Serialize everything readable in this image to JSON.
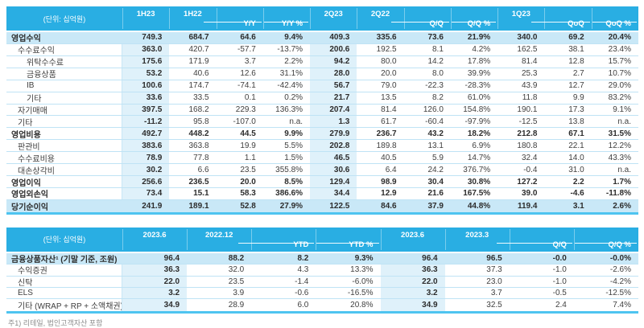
{
  "colors": {
    "header_bg": "#29AEE3",
    "row_highlight": "#C9E8F7",
    "column_highlight": "#DFF1FA",
    "row_border": "#BFE3F5",
    "table_bottom_border": "#4EC4F0",
    "text": "#404040",
    "footnote_text": "#8C8C8C"
  },
  "footnote": "주1) 리테일, 법인고객자산 포함",
  "tables": [
    {
      "id": "income-statement",
      "unit_label": "(단위: 십억원)",
      "columns": [
        {
          "label": "1H23",
          "kind": "period",
          "highlight": true
        },
        {
          "label": "1H22",
          "kind": "period"
        },
        {
          "label": "Y/Y",
          "kind": "delta",
          "line_start": true
        },
        {
          "label": "Y/Y %",
          "kind": "delta"
        },
        {
          "label": "2Q23",
          "kind": "period",
          "highlight": true
        },
        {
          "label": "2Q22",
          "kind": "period"
        },
        {
          "label": "Q/Q",
          "kind": "delta",
          "line_start": true
        },
        {
          "label": "Q/Q %",
          "kind": "delta"
        },
        {
          "label": "1Q23",
          "kind": "period"
        },
        {
          "label": "QoQ",
          "kind": "delta",
          "line_start": true
        },
        {
          "label": "QoQ %",
          "kind": "delta"
        }
      ],
      "rows": [
        {
          "label": "영업수익",
          "indent": 0,
          "bold": true,
          "highlight": true,
          "values": [
            "749.3",
            "684.7",
            "64.6",
            "9.4%",
            "409.3",
            "335.6",
            "73.6",
            "21.9%",
            "340.0",
            "69.2",
            "20.4%"
          ]
        },
        {
          "label": "수수료수익",
          "indent": 1,
          "values": [
            "363.0",
            "420.7",
            "-57.7",
            "-13.7%",
            "200.6",
            "192.5",
            "8.1",
            "4.2%",
            "162.5",
            "38.1",
            "23.4%"
          ]
        },
        {
          "label": "위탁수수료",
          "indent": 2,
          "values": [
            "175.6",
            "171.9",
            "3.7",
            "2.2%",
            "94.2",
            "80.0",
            "14.2",
            "17.8%",
            "81.4",
            "12.8",
            "15.7%"
          ]
        },
        {
          "label": "금융상품",
          "indent": 2,
          "values": [
            "53.2",
            "40.6",
            "12.6",
            "31.1%",
            "28.0",
            "20.0",
            "8.0",
            "39.9%",
            "25.3",
            "2.7",
            "10.7%"
          ]
        },
        {
          "label": "IB",
          "indent": 2,
          "values": [
            "100.6",
            "174.7",
            "-74.1",
            "-42.4%",
            "56.7",
            "79.0",
            "-22.3",
            "-28.3%",
            "43.9",
            "12.7",
            "29.0%"
          ]
        },
        {
          "label": "기타",
          "indent": 2,
          "values": [
            "33.6",
            "33.5",
            "0.1",
            "0.2%",
            "21.7",
            "13.5",
            "8.2",
            "61.0%",
            "11.8",
            "9.9",
            "83.2%"
          ]
        },
        {
          "label": "자기매매",
          "indent": 1,
          "values": [
            "397.5",
            "168.2",
            "229.3",
            "136.3%",
            "207.4",
            "81.4",
            "126.0",
            "154.8%",
            "190.1",
            "17.3",
            "9.1%"
          ]
        },
        {
          "label": "기타",
          "indent": 1,
          "values": [
            "-11.2",
            "95.8",
            "-107.0",
            "n.a.",
            "1.3",
            "61.7",
            "-60.4",
            "-97.9%",
            "-12.5",
            "13.8",
            "n.a."
          ]
        },
        {
          "label": "영업비용",
          "indent": 0,
          "bold": true,
          "values": [
            "492.7",
            "448.2",
            "44.5",
            "9.9%",
            "279.9",
            "236.7",
            "43.2",
            "18.2%",
            "212.8",
            "67.1",
            "31.5%"
          ]
        },
        {
          "label": "판관비",
          "indent": 1,
          "values": [
            "383.6",
            "363.8",
            "19.9",
            "5.5%",
            "202.8",
            "189.8",
            "13.1",
            "6.9%",
            "180.8",
            "22.1",
            "12.2%"
          ]
        },
        {
          "label": "수수료비용",
          "indent": 1,
          "values": [
            "78.9",
            "77.8",
            "1.1",
            "1.5%",
            "46.5",
            "40.5",
            "5.9",
            "14.7%",
            "32.4",
            "14.0",
            "43.3%"
          ]
        },
        {
          "label": "대손상각비",
          "indent": 1,
          "values": [
            "30.2",
            "6.6",
            "23.5",
            "355.8%",
            "30.6",
            "6.4",
            "24.2",
            "376.7%",
            "-0.4",
            "31.0",
            "n.a."
          ]
        },
        {
          "label": "영업이익",
          "indent": 0,
          "bold": true,
          "values": [
            "256.6",
            "236.5",
            "20.0",
            "8.5%",
            "129.4",
            "98.9",
            "30.4",
            "30.8%",
            "127.2",
            "2.2",
            "1.7%"
          ]
        },
        {
          "label": "영업외손익",
          "indent": 0,
          "bold": true,
          "values": [
            "73.4",
            "15.1",
            "58.3",
            "386.6%",
            "34.4",
            "12.9",
            "21.6",
            "167.5%",
            "39.0",
            "-4.6",
            "-11.8%"
          ]
        },
        {
          "label": "당기순이익",
          "indent": 0,
          "bold": true,
          "highlight": true,
          "values": [
            "241.9",
            "189.1",
            "52.8",
            "27.9%",
            "122.5",
            "84.6",
            "37.9",
            "44.8%",
            "119.4",
            "3.1",
            "2.6%"
          ]
        }
      ]
    },
    {
      "id": "financial-products",
      "unit_label": "(단위: 십억원)",
      "columns": [
        {
          "label": "2023.6",
          "kind": "period",
          "highlight": true
        },
        {
          "label": "2022.12",
          "kind": "period"
        },
        {
          "label": "YTD",
          "kind": "delta",
          "line_start": true
        },
        {
          "label": "YTD %",
          "kind": "delta"
        },
        {
          "label": "2023.6",
          "kind": "period",
          "highlight": true
        },
        {
          "label": "2023.3",
          "kind": "period"
        },
        {
          "label": "Q/Q",
          "kind": "delta",
          "line_start": true
        },
        {
          "label": "Q/Q %",
          "kind": "delta"
        }
      ],
      "rows": [
        {
          "label": "금융상품자산¹ (기말 기준, 조원)",
          "indent": 0,
          "bold": true,
          "highlight": true,
          "values": [
            "96.4",
            "88.2",
            "8.2",
            "9.3%",
            "96.4",
            "96.5",
            "-0.0",
            "-0.0%"
          ]
        },
        {
          "label": "수익증권",
          "indent": 1,
          "values": [
            "36.3",
            "32.0",
            "4.3",
            "13.3%",
            "36.3",
            "37.3",
            "-1.0",
            "-2.6%"
          ]
        },
        {
          "label": "신탁",
          "indent": 1,
          "values": [
            "22.0",
            "23.5",
            "-1.4",
            "-6.0%",
            "22.0",
            "23.0",
            "-1.0",
            "-4.2%"
          ]
        },
        {
          "label": "ELS",
          "indent": 1,
          "values": [
            "3.2",
            "3.9",
            "-0.6",
            "-16.5%",
            "3.2",
            "3.7",
            "-0.5",
            "-12.5%"
          ]
        },
        {
          "label": "기타 (WRAP + RP + 소액채권)",
          "indent": 1,
          "values": [
            "34.9",
            "28.9",
            "6.0",
            "20.8%",
            "34.9",
            "32.5",
            "2.4",
            "7.4%"
          ]
        }
      ]
    }
  ]
}
